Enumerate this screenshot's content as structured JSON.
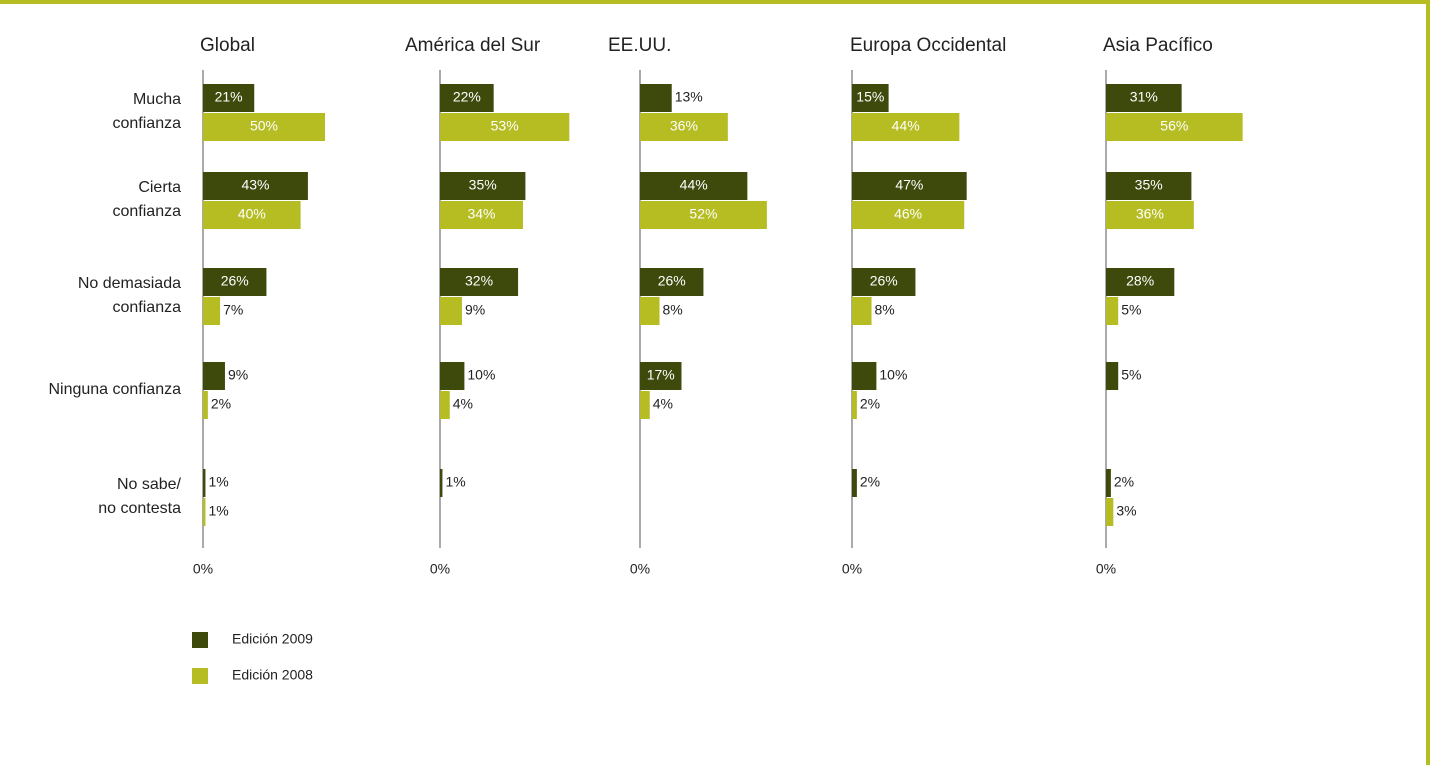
{
  "chart_data": {
    "type": "bar",
    "orientation": "horizontal",
    "categories": [
      "Mucha\nconfianza",
      "Cierta\nconfianza",
      "No demasiada\nconfianza",
      "Ninguna confianza",
      "No sabe/\nno contesta"
    ],
    "series": [
      {
        "name": "Edición 2009",
        "color": "#3d4a0c"
      },
      {
        "name": "Edición 2008",
        "color": "#b5bd22"
      }
    ],
    "xlim": [
      0,
      100
    ],
    "panels": [
      {
        "title": "Global",
        "xticks": [
          {
            "value": 0,
            "label": "0%"
          }
        ],
        "series": [
          {
            "values": [
              21,
              43,
              26,
              9,
              1
            ],
            "value_labels": [
              "21%",
              "43%",
              "26%",
              "9%",
              "1%"
            ]
          },
          {
            "values": [
              50,
              40,
              7,
              2,
              1
            ],
            "value_labels": [
              "50%",
              "40%",
              "7%",
              "2%",
              "1%"
            ]
          }
        ]
      },
      {
        "title": "América del Sur",
        "xticks": [
          {
            "value": 0,
            "label": "0%"
          }
        ],
        "series": [
          {
            "values": [
              22,
              35,
              32,
              10,
              1
            ],
            "value_labels": [
              "22%",
              "35%",
              "32%",
              "10%",
              "1%"
            ]
          },
          {
            "values": [
              53,
              34,
              9,
              4,
              null
            ],
            "value_labels": [
              "53%",
              "34%",
              "9%",
              "4%",
              null
            ]
          }
        ]
      },
      {
        "title": "EE.UU.",
        "xticks": [
          {
            "value": 0,
            "label": "0%"
          }
        ],
        "series": [
          {
            "values": [
              13,
              44,
              26,
              17,
              null
            ],
            "value_labels": [
              "13%",
              "44%",
              "26%",
              "17%",
              null
            ]
          },
          {
            "values": [
              36,
              52,
              8,
              4,
              null
            ],
            "value_labels": [
              "36%",
              "52%",
              "8%",
              "4%",
              null
            ]
          }
        ]
      },
      {
        "title": "Europa Occidental",
        "xticks": [
          {
            "value": 0,
            "label": "0%"
          }
        ],
        "series": [
          {
            "values": [
              15,
              47,
              26,
              10,
              2
            ],
            "value_labels": [
              "15%",
              "47%",
              "26%",
              "10%",
              "2%"
            ]
          },
          {
            "values": [
              44,
              46,
              8,
              2,
              null
            ],
            "value_labels": [
              "44%",
              "46%",
              "8%",
              "2%",
              null
            ]
          }
        ]
      },
      {
        "title": "Asia Pacífico",
        "xticks": [
          {
            "value": 0,
            "label": "0%"
          }
        ],
        "series": [
          {
            "values": [
              31,
              35,
              28,
              5,
              2
            ],
            "value_labels": [
              "31%",
              "35%",
              "28%",
              "5%",
              "2%"
            ]
          },
          {
            "values": [
              56,
              36,
              5,
              null,
              3
            ],
            "value_labels": [
              "56%",
              "36%",
              "5%",
              null,
              "3%"
            ]
          }
        ]
      }
    ]
  }
}
